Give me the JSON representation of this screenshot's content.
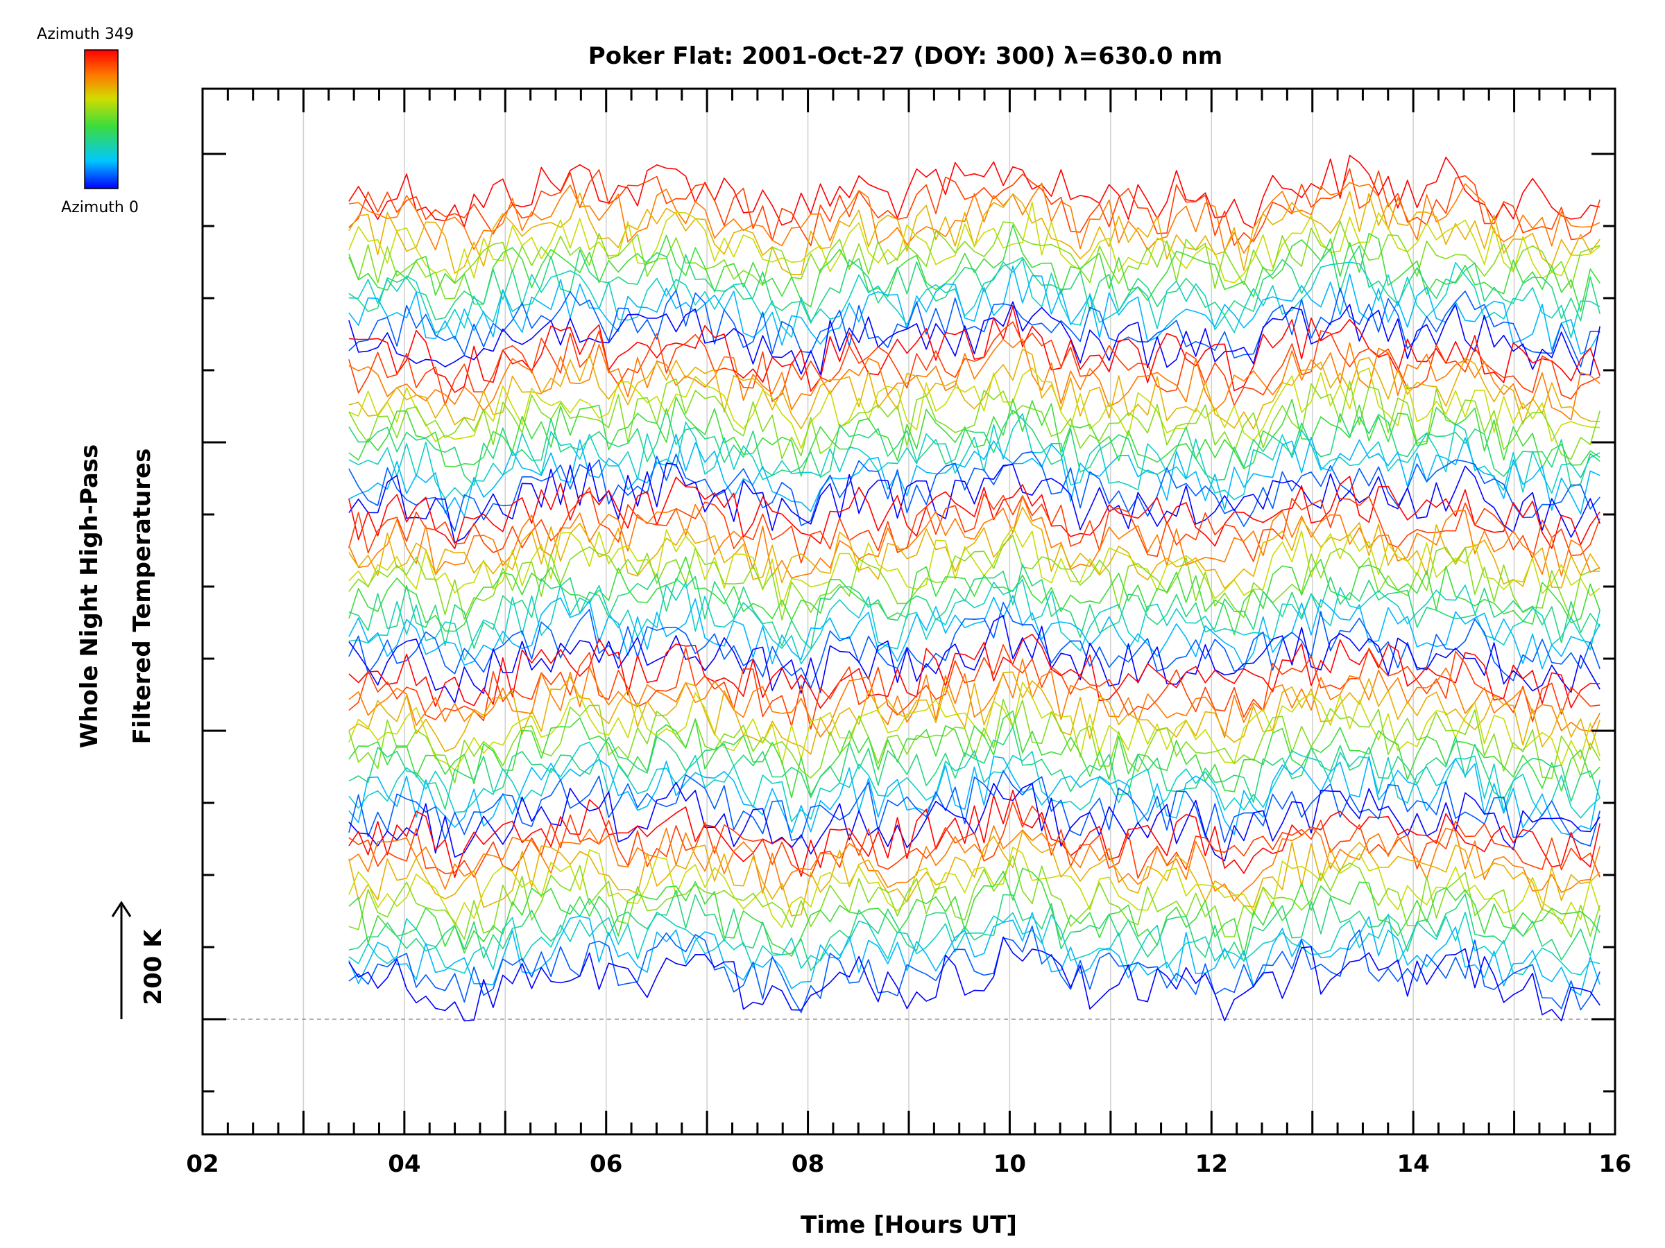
{
  "chart_data": {
    "type": "line",
    "title": "Poker Flat: 2001-Oct-27 (DOY: 300) λ=630.0 nm",
    "xlabel": "Time [Hours UT]",
    "ylabel_line1": "Whole Night High-Pass",
    "ylabel_line2": "Filtered Temperatures",
    "scale_indicator": "200 K",
    "xlim": [
      2,
      16
    ],
    "x_tick_labels": [
      "02",
      "04",
      "06",
      "08",
      "10",
      "12",
      "14",
      "16"
    ],
    "x_gridlines": [
      3,
      4,
      5,
      6,
      7,
      8,
      9,
      10,
      11,
      12,
      13,
      14,
      15
    ],
    "colorbar": {
      "label_top": "Azimuth 349",
      "label_bottom": "Azimuth 0",
      "colormap": "rainbow",
      "colors": [
        "#0000ff",
        "#00c8ff",
        "#3cdc3c",
        "#d2dc00",
        "#ff7800",
        "#ff0000"
      ]
    },
    "data_time_range": [
      3.45,
      15.85
    ],
    "series_groups": 5,
    "series_per_group": 12,
    "baseline_dashed": true
  }
}
